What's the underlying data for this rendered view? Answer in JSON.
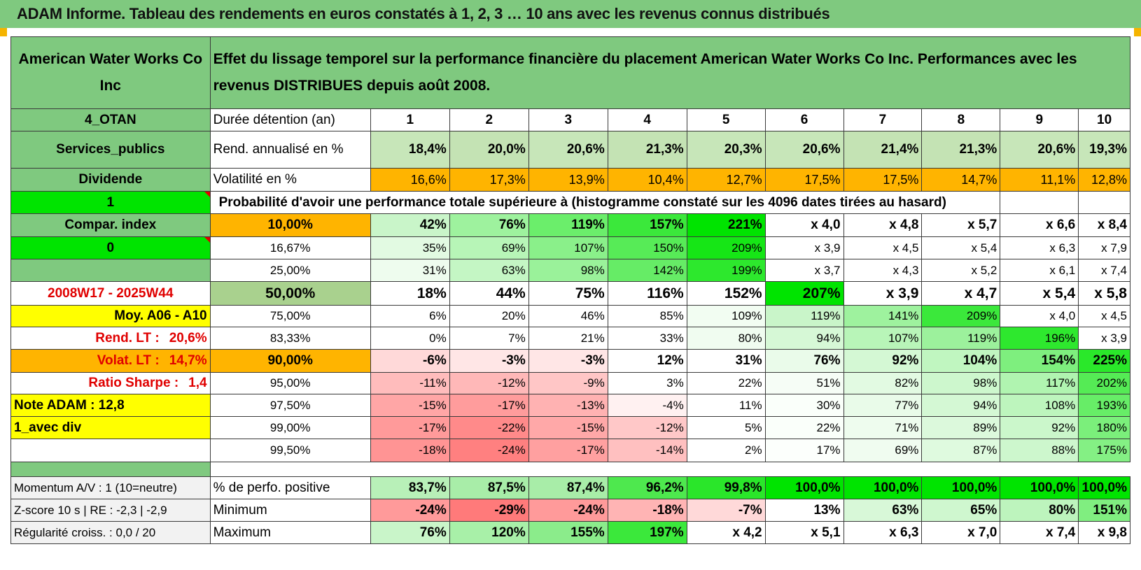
{
  "title": "ADAM Informe. Tableau des rendements en euros constatés à 1, 2, 3 … 10 ans avec les revenus connus distribués",
  "header": {
    "company": "American Water Works Co Inc",
    "description": "Effet du lissage temporel sur la performance financière du placement American Water Works Co Inc. Performances avec les revenus DISTRIBUES depuis août 2008."
  },
  "side_labels": {
    "code": "4_OTAN",
    "sector": "Services_publics",
    "mode": "Dividende",
    "selector1": "1",
    "compar": "Compar. index",
    "selector2": "0",
    "blank": "",
    "period": "2008W17 - 2025W44",
    "moy": "Moy. A06 - A10",
    "rend_lt_label": "Rend. LT :",
    "rend_lt_value": "20,6%",
    "volat_lt_label": "Volat. LT :",
    "volat_lt_value": "14,7%",
    "sharpe_label": "Ratio Sharpe :",
    "sharpe_value": "1,4",
    "note": "Note ADAM : 12,8",
    "avec_div": "1_avec div"
  },
  "years_label": "Durée détention (an)",
  "years": [
    "1",
    "2",
    "3",
    "4",
    "5",
    "6",
    "7",
    "8",
    "9",
    "10"
  ],
  "rend_label": "Rend. annualisé en %",
  "rend": [
    "18,4%",
    "20,0%",
    "20,6%",
    "21,3%",
    "20,3%",
    "20,6%",
    "21,4%",
    "21,3%",
    "20,6%",
    "19,3%"
  ],
  "vol_label": "Volatilité en %",
  "vol": [
    "16,6%",
    "17,3%",
    "13,9%",
    "10,4%",
    "12,7%",
    "17,5%",
    "17,5%",
    "14,7%",
    "11,1%",
    "12,8%"
  ],
  "prob_title": "Probabilité d'avoir une performance totale supérieure à (histogramme constaté sur les 4096 dates tirées au hasard)",
  "prob_rows": [
    {
      "p": "10,00%",
      "v": [
        "42%",
        "76%",
        "119%",
        "157%",
        "221%",
        "x 4,0",
        "x 4,8",
        "x 5,7",
        "x 6,6",
        "x 8,4"
      ]
    },
    {
      "p": "16,67%",
      "v": [
        "35%",
        "69%",
        "107%",
        "150%",
        "209%",
        "x 3,9",
        "x 4,5",
        "x 5,4",
        "x 6,3",
        "x 7,9"
      ]
    },
    {
      "p": "25,00%",
      "v": [
        "31%",
        "63%",
        "98%",
        "142%",
        "199%",
        "x 3,7",
        "x 4,3",
        "x 5,2",
        "x 6,1",
        "x 7,4"
      ]
    },
    {
      "p": "50,00%",
      "v": [
        "18%",
        "44%",
        "75%",
        "116%",
        "152%",
        "207%",
        "x 3,9",
        "x 4,7",
        "x 5,4",
        "x 5,8"
      ]
    },
    {
      "p": "75,00%",
      "v": [
        "6%",
        "20%",
        "46%",
        "85%",
        "109%",
        "119%",
        "141%",
        "209%",
        "x 4,0",
        "x 4,5"
      ]
    },
    {
      "p": "83,33%",
      "v": [
        "0%",
        "7%",
        "21%",
        "33%",
        "80%",
        "94%",
        "107%",
        "119%",
        "196%",
        "x 3,9"
      ]
    },
    {
      "p": "90,00%",
      "v": [
        "-6%",
        "-3%",
        "-3%",
        "12%",
        "31%",
        "76%",
        "92%",
        "104%",
        "154%",
        "225%"
      ]
    },
    {
      "p": "95,00%",
      "v": [
        "-11%",
        "-12%",
        "-9%",
        "3%",
        "22%",
        "51%",
        "82%",
        "98%",
        "117%",
        "202%"
      ]
    },
    {
      "p": "97,50%",
      "v": [
        "-15%",
        "-17%",
        "-13%",
        "-4%",
        "11%",
        "30%",
        "77%",
        "94%",
        "108%",
        "193%"
      ]
    },
    {
      "p": "99,00%",
      "v": [
        "-17%",
        "-22%",
        "-15%",
        "-12%",
        "5%",
        "22%",
        "71%",
        "89%",
        "92%",
        "180%"
      ]
    },
    {
      "p": "99,50%",
      "v": [
        "-18%",
        "-24%",
        "-17%",
        "-14%",
        "2%",
        "17%",
        "69%",
        "87%",
        "88%",
        "175%"
      ]
    }
  ],
  "footer": [
    {
      "side": "Momentum A/V : 1 (10=neutre)",
      "label": "% de perfo. positive",
      "v": [
        "83,7%",
        "87,5%",
        "87,4%",
        "96,2%",
        "99,8%",
        "100,0%",
        "100,0%",
        "100,0%",
        "100,0%",
        "100,0%"
      ]
    },
    {
      "side": "Z-score 10 s | RE : -2,3 | -2,9",
      "label": "Minimum",
      "v": [
        "-24%",
        "-29%",
        "-24%",
        "-18%",
        "-7%",
        "13%",
        "63%",
        "65%",
        "80%",
        "151%"
      ]
    },
    {
      "side": "Régularité croiss. : 0,0 / 20",
      "label": "Maximum",
      "v": [
        "76%",
        "120%",
        "155%",
        "197%",
        "x 4,2",
        "x 5,1",
        "x 6,3",
        "x 7,0",
        "x 7,4",
        "x 9,8"
      ]
    }
  ],
  "colors": {
    "header_green": "#7fc97f",
    "bright_green": "#00e400",
    "yellow": "#ffff00",
    "orange": "#ffb400",
    "red_text": "#e00000"
  },
  "cell_colors": {
    "rend": [
      "#c7e6b9",
      "#c4e3b4",
      "#c7e6b9",
      "#c4e3b4",
      "#c7e6b9",
      "#c7e6b9",
      "#c4e3b4",
      "#c4e3b4",
      "#c7e6b9",
      "#c7e6b9"
    ],
    "vol": [
      "#ffb400",
      "#ffb400",
      "#ffb400",
      "#ffb400",
      "#ffb400",
      "#ffb400",
      "#ffb400",
      "#ffb400",
      "#ffb400",
      "#ffb400"
    ],
    "prob_p": [
      "#ffb400",
      "#ffffff",
      "#ffffff",
      "#a9d18e",
      "#ffffff",
      "#ffffff",
      "#ffb400",
      "#ffffff",
      "#ffffff",
      "#ffffff",
      "#ffffff"
    ],
    "prob": [
      [
        "#c9f5c9",
        "#9ef29e",
        "#6bee6b",
        "#3be83b",
        "#00e400",
        "#ffffff",
        "#ffffff",
        "#ffffff",
        "#ffffff",
        "#ffffff"
      ],
      [
        "#e2fae2",
        "#b7f5b7",
        "#8af08a",
        "#57eb57",
        "#16e616",
        "#ffffff",
        "#ffffff",
        "#ffffff",
        "#ffffff",
        "#ffffff"
      ],
      [
        "#eefcee",
        "#c4f6c4",
        "#9af29a",
        "#66ec66",
        "#2de82d",
        "#ffffff",
        "#ffffff",
        "#ffffff",
        "#ffffff",
        "#ffffff"
      ],
      [
        "#ffffff",
        "#ffffff",
        "#ffffff",
        "#ffffff",
        "#ffffff",
        "#00e400",
        "#ffffff",
        "#ffffff",
        "#ffffff",
        "#ffffff"
      ],
      [
        "#ffffff",
        "#ffffff",
        "#ffffff",
        "#ffffff",
        "#f2fdf2",
        "#c9f5c9",
        "#9ef29e",
        "#3be83b",
        "#ffffff",
        "#ffffff"
      ],
      [
        "#ffffff",
        "#ffffff",
        "#ffffff",
        "#ffffff",
        "#f0fcf0",
        "#d6f8d6",
        "#b8f5b8",
        "#9cf19c",
        "#2ee82e",
        "#ffffff"
      ],
      [
        "#ffd9d9",
        "#ffe6e6",
        "#ffe6e6",
        "#ffffff",
        "#ffffff",
        "#eafbea",
        "#d4f8d4",
        "#c0f6c0",
        "#7eef7e",
        "#2ae82a"
      ],
      [
        "#ffbcbc",
        "#ffb8b8",
        "#ffc6c6",
        "#ffffff",
        "#ffffff",
        "#f6fdf6",
        "#e2fae2",
        "#cdf7cd",
        "#b0f4b0",
        "#55eb55"
      ],
      [
        "#ffa6a6",
        "#ff9c9c",
        "#ffb2b2",
        "#fff1f1",
        "#ffffff",
        "#fafffa",
        "#e9fbe9",
        "#d4f8d4",
        "#bdf5bd",
        "#67ed67"
      ],
      [
        "#ff9a9a",
        "#ff8a8a",
        "#ffa8a8",
        "#ffc8c8",
        "#ffffff",
        "#fafffa",
        "#eefcee",
        "#dcf9dc",
        "#cbf7cb",
        "#7bef7b"
      ],
      [
        "#ff9494",
        "#ff8080",
        "#ffa0a0",
        "#ffc0c0",
        "#ffffff",
        "#fcfffc",
        "#f0fcf0",
        "#dffadf",
        "#cdf7cd",
        "#84f084"
      ]
    ],
    "footer": [
      [
        "#b8f0b8",
        "#a8eda8",
        "#a8eda8",
        "#4ee84e",
        "#2ae62a",
        "#00e400",
        "#00e400",
        "#00e400",
        "#00e400",
        "#00e400"
      ],
      [
        "#ff9a9a",
        "#ff7a7a",
        "#ff9a9a",
        "#ffb4b4",
        "#ffd9d9",
        "#ffffff",
        "#d8f8d8",
        "#cff7cf",
        "#bdf4bd",
        "#80ee80"
      ],
      [
        "#c9f5c9",
        "#a8f0a8",
        "#8bec8b",
        "#3be83b",
        "#ffffff",
        "#ffffff",
        "#ffffff",
        "#ffffff",
        "#ffffff",
        "#ffffff"
      ]
    ]
  }
}
